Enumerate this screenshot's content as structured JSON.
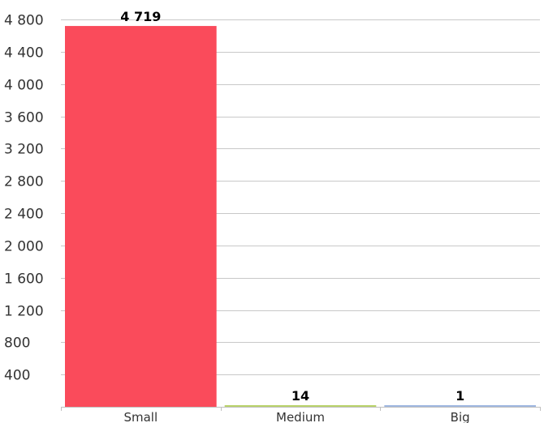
{
  "chart_data": {
    "type": "bar",
    "categories": [
      "Small",
      "Medium",
      "Big"
    ],
    "values": [
      4719,
      14,
      1
    ],
    "value_labels": [
      "4 719",
      "14",
      "1"
    ],
    "colors": [
      "#fa4b5b",
      "#b9d36a",
      "#9fb7e0"
    ],
    "title": "",
    "xlabel": "",
    "ylabel": "",
    "ylim": [
      0,
      4800
    ],
    "yticks": [
      400,
      800,
      1200,
      1600,
      2000,
      2400,
      2800,
      3200,
      3600,
      4000,
      4400,
      4800
    ],
    "ytick_labels": [
      "400",
      "800",
      "1 200",
      "1 600",
      "2 000",
      "2 400",
      "2 800",
      "3 200",
      "3 600",
      "4 000",
      "4 400",
      "4 800"
    ],
    "grid": true,
    "legend": "none"
  }
}
